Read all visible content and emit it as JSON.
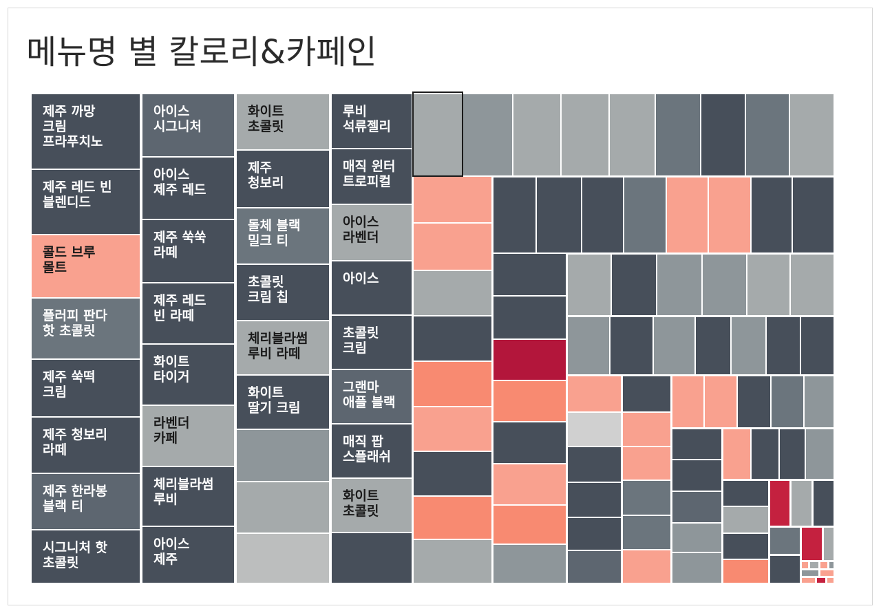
{
  "title": "메뉴명 별 칼로리&카페인",
  "colors": {
    "dark": "#474f5a",
    "slate": "#5d6670",
    "steel": "#6b757d",
    "grey": "#8e969a",
    "silver": "#a5aaab",
    "light": "#bcbebe",
    "pale": "#d0d0d0",
    "salmon": "#f9a18f",
    "coral": "#f88a71",
    "crimson": "#b3163b",
    "red": "#c4213f",
    "label_light": "#ffffff",
    "label_dark": "#1a1a1a",
    "selected_outline": "#1a1a1a"
  },
  "chart_data": {
    "type": "treemap",
    "title": "메뉴명 별 칼로리&카페인",
    "encoding": "size and color by menu item; labels shown only where tiles are large enough",
    "labeled_items": [
      {
        "label": "제주 까망\n크림\n프라푸치노",
        "color": "dark"
      },
      {
        "label": "제주 레드 빈\n블렌디드",
        "color": "dark"
      },
      {
        "label": "콜드 브루\n몰트",
        "color": "salmon"
      },
      {
        "label": "플러피 판다\n핫 초콜릿",
        "color": "steel"
      },
      {
        "label": "제주 쑥떡\n크림",
        "color": "dark"
      },
      {
        "label": "제주 청보리\n라떼",
        "color": "dark"
      },
      {
        "label": "제주 한라봉\n블랙 티",
        "color": "slate"
      },
      {
        "label": "시그니처 핫\n초콜릿",
        "color": "dark"
      },
      {
        "label": "아이스\n시그니처",
        "color": "slate"
      },
      {
        "label": "아이스\n제주 레드",
        "color": "dark"
      },
      {
        "label": "제주 쑥쑥\n라떼",
        "color": "dark"
      },
      {
        "label": "제주 레드\n빈 라떼",
        "color": "dark"
      },
      {
        "label": "화이트\n타이거",
        "color": "dark"
      },
      {
        "label": "라벤더\n카페",
        "color": "silver"
      },
      {
        "label": "체리블라썸\n루비",
        "color": "dark"
      },
      {
        "label": "아이스\n제주",
        "color": "dark"
      },
      {
        "label": "화이트\n초콜릿",
        "color": "silver"
      },
      {
        "label": "제주\n청보리",
        "color": "dark"
      },
      {
        "label": "돌체 블랙\n밀크 티",
        "color": "steel"
      },
      {
        "label": "초콜릿\n크림 칩",
        "color": "dark"
      },
      {
        "label": "체리블라썸\n루비 라떼",
        "color": "silver"
      },
      {
        "label": "화이트\n딸기 크림",
        "color": "dark"
      },
      {
        "label": "루비\n석류젤리",
        "color": "dark"
      },
      {
        "label": "매직 윈터\n트로피컬",
        "color": "dark"
      },
      {
        "label": "아이스\n라벤더",
        "color": "silver"
      },
      {
        "label": "아이스",
        "color": "dark"
      },
      {
        "label": "초콜릿\n크림",
        "color": "dark"
      },
      {
        "label": "그랜마\n애플 블랙",
        "color": "slate"
      },
      {
        "label": "매직 팝\n스플래쉬",
        "color": "dark"
      },
      {
        "label": "화이트\n초콜릿",
        "color": "silver"
      }
    ]
  }
}
